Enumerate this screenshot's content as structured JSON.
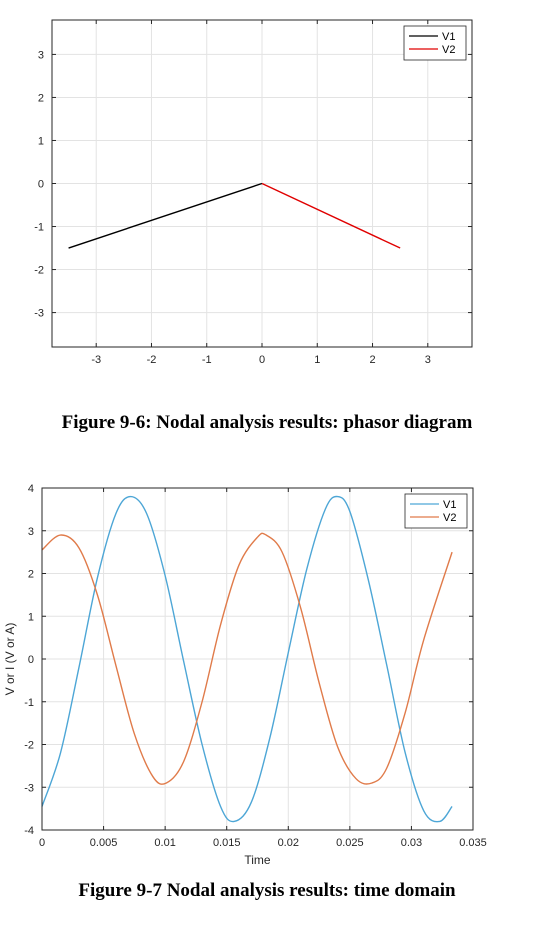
{
  "chart_data": [
    {
      "type": "line",
      "title": "",
      "xlabel": "",
      "ylabel": "",
      "xlim": [
        -3.8,
        3.8
      ],
      "ylim": [
        -3.8,
        3.8
      ],
      "xticks": [
        -3,
        -2,
        -1,
        0,
        1,
        2,
        3
      ],
      "yticks": [
        -3,
        -2,
        -1,
        0,
        1,
        2,
        3
      ],
      "grid": true,
      "legend_position": "top-right",
      "series": [
        {
          "name": "V1",
          "color": "#000000",
          "x": [
            0,
            -3.5
          ],
          "y": [
            0,
            -1.5
          ]
        },
        {
          "name": "V2",
          "color": "#e00000",
          "x": [
            0,
            2.5
          ],
          "y": [
            0,
            -1.5
          ]
        }
      ]
    },
    {
      "type": "line",
      "title": "",
      "xlabel": "Time",
      "ylabel": "V or I (V or A)",
      "xlim": [
        0,
        0.035
      ],
      "ylim": [
        -4,
        4
      ],
      "xticks": [
        "0",
        "0.005",
        "0.01",
        "0.015",
        "0.02",
        "0.025",
        "0.03",
        "0.035"
      ],
      "yticks": [
        -4,
        -3,
        -2,
        -1,
        0,
        1,
        2,
        3,
        4
      ],
      "grid": true,
      "legend_position": "top-right",
      "series": [
        {
          "name": "V1",
          "color": "#4da6d6",
          "x": [
            0,
            0.0015,
            0.003,
            0.0045,
            0.006,
            0.0072,
            0.0085,
            0.01,
            0.0115,
            0.013,
            0.0145,
            0.0156,
            0.017,
            0.0185,
            0.02,
            0.0215,
            0.023,
            0.024,
            0.025,
            0.0265,
            0.028,
            0.0295,
            0.031,
            0.0323,
            0.0333
          ],
          "y": [
            -3.45,
            -2.2,
            -0.2,
            1.9,
            3.4,
            3.8,
            3.4,
            1.95,
            -0.05,
            -2.0,
            -3.45,
            -3.8,
            -3.35,
            -1.85,
            0.15,
            2.1,
            3.5,
            3.8,
            3.45,
            1.85,
            -0.15,
            -2.2,
            -3.55,
            -3.8,
            -3.45
          ]
        },
        {
          "name": "V2",
          "color": "#e07b4a",
          "x": [
            0,
            0.0015,
            0.003,
            0.0045,
            0.006,
            0.0075,
            0.009,
            0.0101,
            0.0115,
            0.013,
            0.0145,
            0.016,
            0.0175,
            0.0182,
            0.0195,
            0.021,
            0.0225,
            0.024,
            0.0255,
            0.0268,
            0.028,
            0.0295,
            0.031,
            0.0333
          ],
          "y": [
            2.55,
            2.9,
            2.6,
            1.5,
            -0.15,
            -1.75,
            -2.75,
            -2.9,
            -2.4,
            -1.0,
            0.8,
            2.2,
            2.85,
            2.9,
            2.5,
            1.2,
            -0.55,
            -2.05,
            -2.8,
            -2.9,
            -2.55,
            -1.25,
            0.45,
            2.5
          ]
        }
      ]
    }
  ],
  "captions": {
    "fig1": "Figure 9-6: Nodal analysis results: phasor diagram",
    "fig2": "Figure 9-7 Nodal analysis results: time domain"
  }
}
